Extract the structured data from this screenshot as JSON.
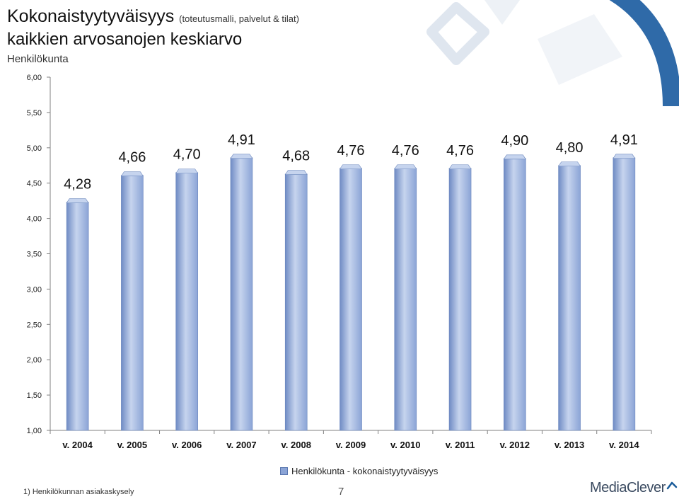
{
  "header": {
    "title": "Kokonaistyytyväisyys",
    "title_note": "(toteutusmalli, palvelut & tilat)",
    "subtitle": "kaikkien arvosanojen keskiarvo",
    "org": "Henkilökunta"
  },
  "legend": {
    "label": "Henkilökunta - kokonaistyytyväisyys"
  },
  "footer": {
    "footnote": "1) Henkilökunnan asiakaskysely",
    "page_number": "7",
    "logo": "MediaClever"
  },
  "colors": {
    "bar": "#8ba4d6",
    "bar_dark": "#6f8bc4",
    "bar_light": "#c6d4ee",
    "axis": "#808080"
  },
  "chart_data": {
    "type": "bar",
    "categories": [
      "v. 2004",
      "v. 2005",
      "v. 2006",
      "v. 2007",
      "v. 2008",
      "v. 2009",
      "v. 2010",
      "v. 2011",
      "v. 2012",
      "v. 2013",
      "v. 2014"
    ],
    "series": [
      {
        "name": "Henkilökunta - kokonaistyytyväisyys",
        "values": [
          4.28,
          4.66,
          4.7,
          4.91,
          4.68,
          4.76,
          4.76,
          4.76,
          4.9,
          4.8,
          4.91
        ]
      }
    ],
    "value_labels": [
      "4,28",
      "4,66",
      "4,70",
      "4,91",
      "4,68",
      "4,76",
      "4,76",
      "4,76",
      "4,90",
      "4,80",
      "4,91"
    ],
    "yticks": [
      "1,00",
      "1,50",
      "2,00",
      "2,50",
      "3,00",
      "3,50",
      "4,00",
      "4,50",
      "5,00",
      "5,50",
      "6,00"
    ],
    "ylim": [
      1,
      6
    ],
    "grid": false,
    "legend_position": "bottom"
  }
}
